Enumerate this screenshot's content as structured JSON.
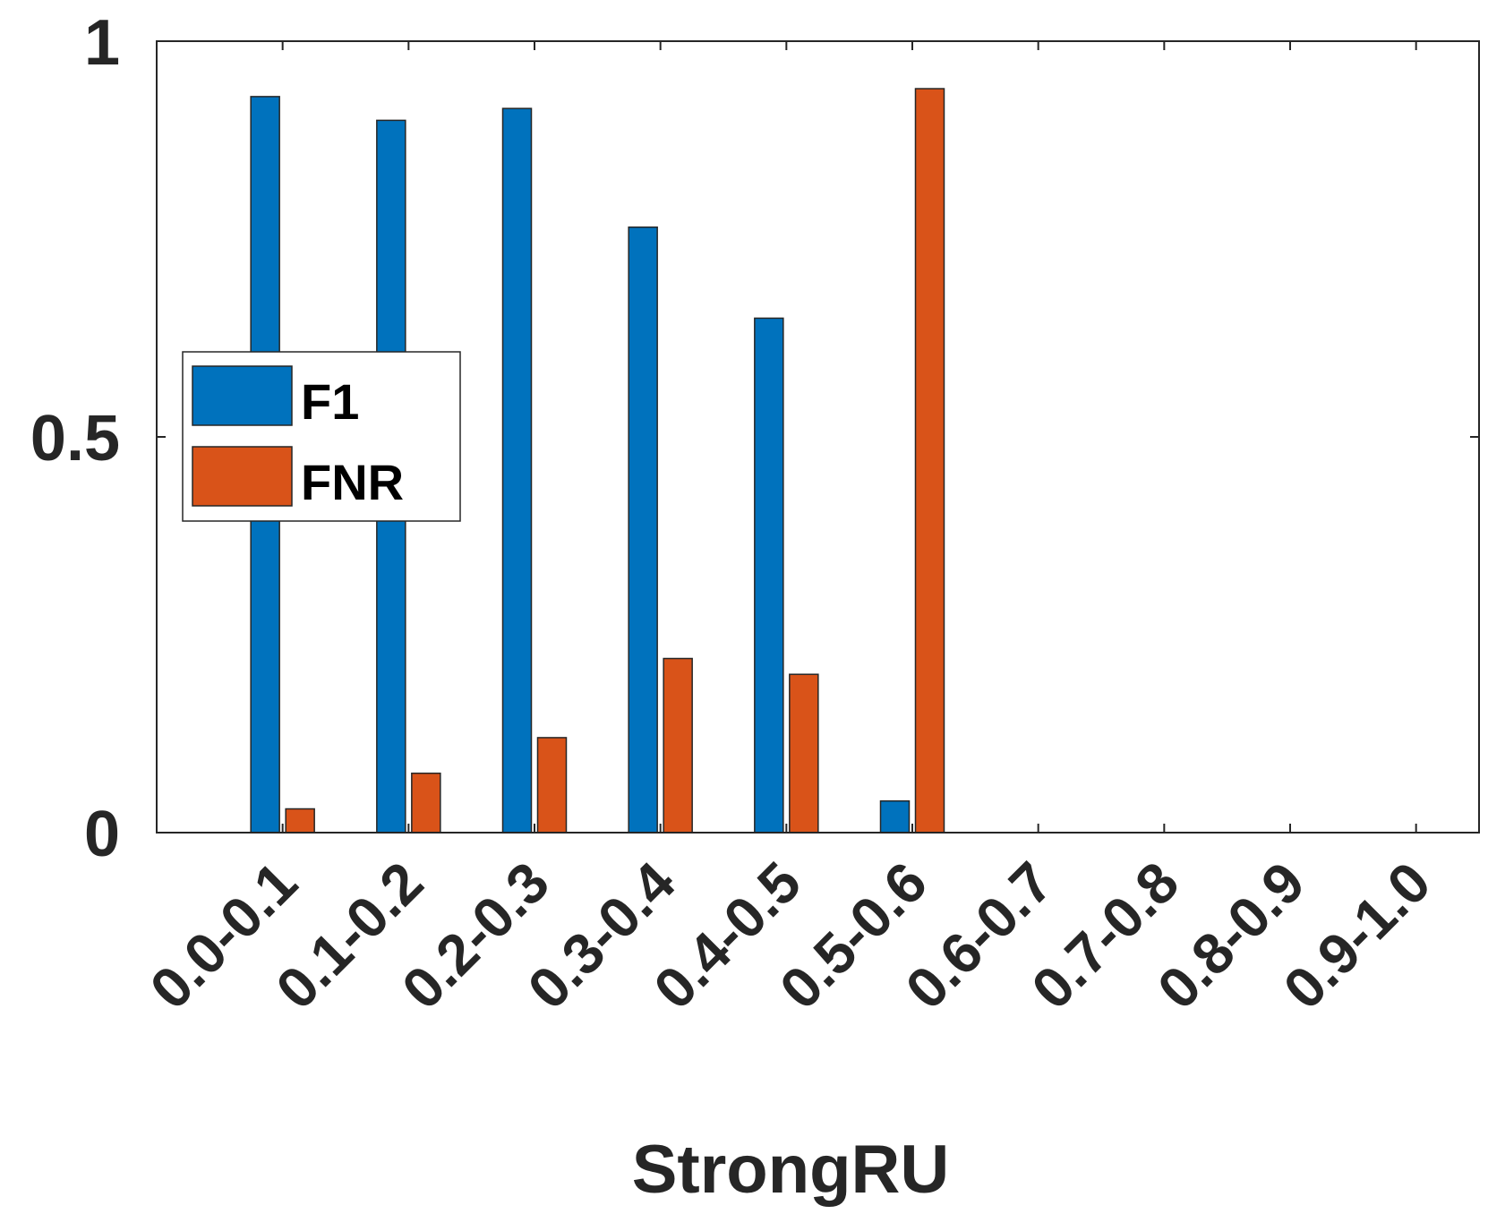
{
  "chart_data": {
    "type": "bar",
    "categories": [
      "0.0-0.1",
      "0.1-0.2",
      "0.2-0.3",
      "0.3-0.4",
      "0.4-0.5",
      "0.5-0.6",
      "0.6-0.7",
      "0.7-0.8",
      "0.8-0.9",
      "0.9-1.0"
    ],
    "series": [
      {
        "name": "F1",
        "color": "#0072BD",
        "values": [
          0.93,
          0.9,
          0.915,
          0.765,
          0.65,
          0.04,
          0,
          0,
          0,
          0
        ]
      },
      {
        "name": "FNR",
        "color": "#D95319",
        "values": [
          0.03,
          0.075,
          0.12,
          0.22,
          0.2,
          0.94,
          0,
          0,
          0,
          0
        ]
      }
    ],
    "title": "",
    "xlabel": "StrongRU",
    "ylabel": "",
    "ylim": [
      0,
      1
    ],
    "yticks": [
      0,
      0.5,
      1
    ],
    "ytick_labels": [
      "0",
      "0.5",
      "1"
    ],
    "legend_position": "left",
    "grid": false
  }
}
